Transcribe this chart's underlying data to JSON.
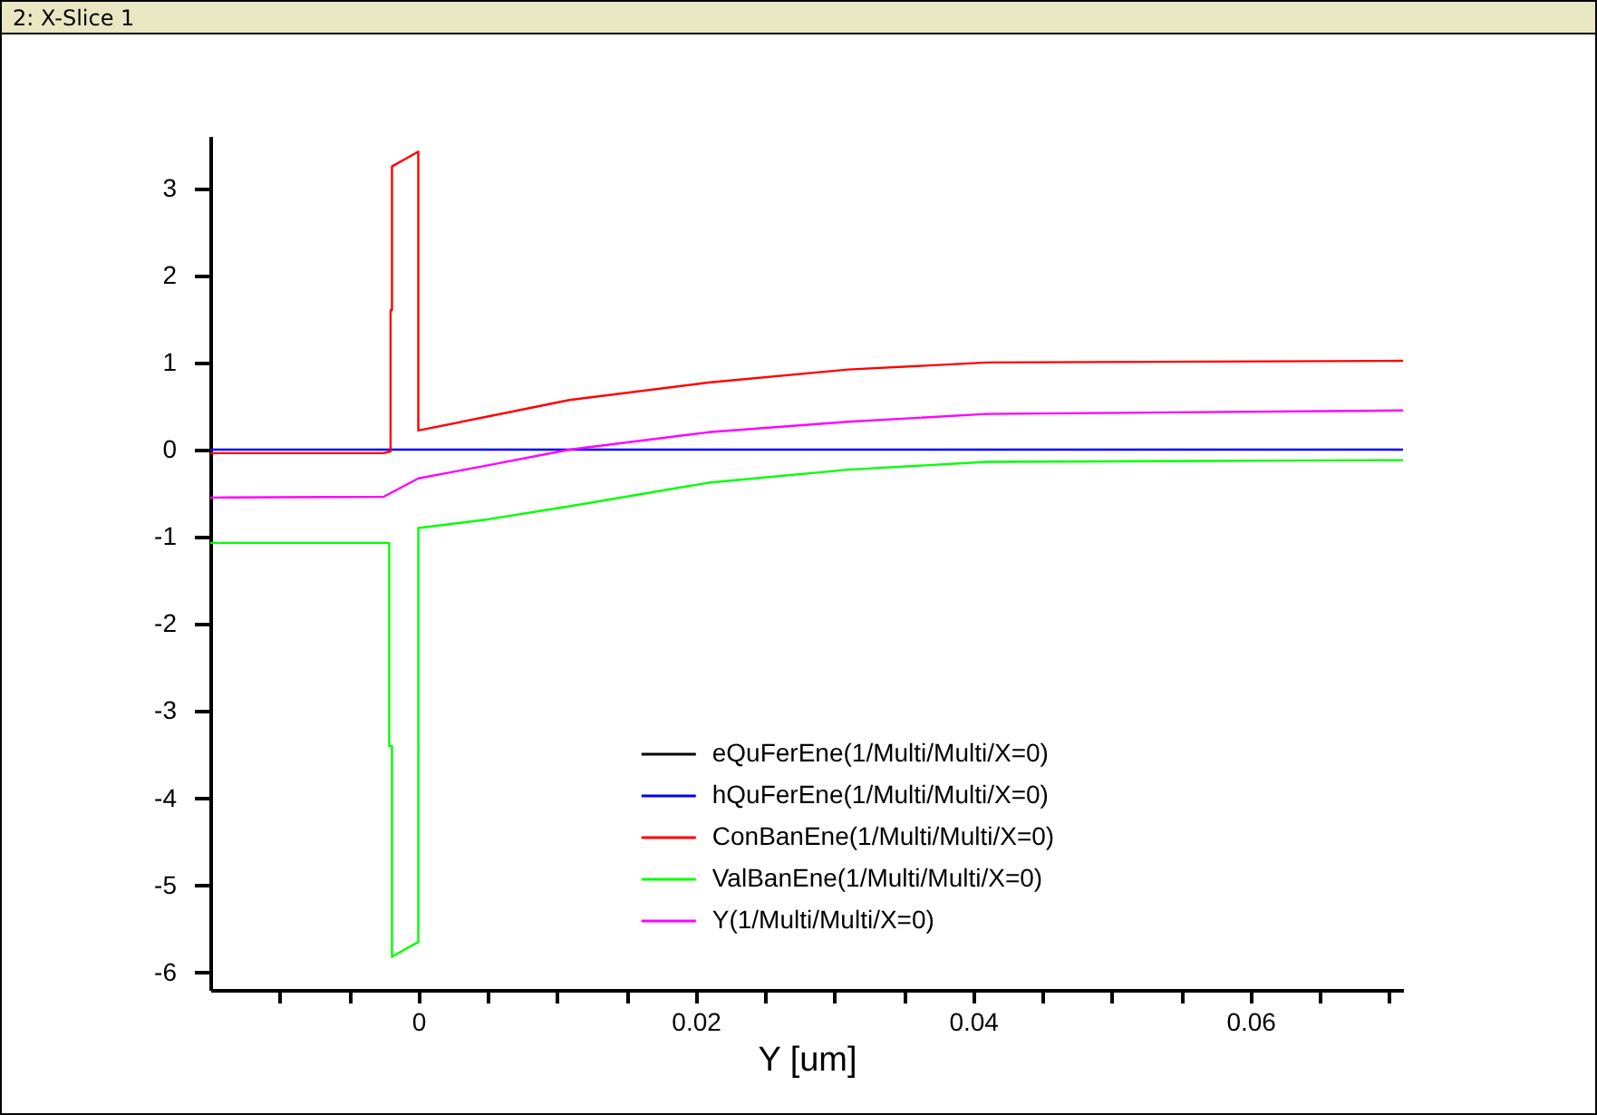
{
  "chart_data": {
    "type": "line",
    "title": "2: X-Slice 1",
    "xlabel": "Y [um]",
    "xlim": [
      -0.015,
      0.071
    ],
    "ylim": [
      -6.2,
      3.6
    ],
    "xticks": [
      {
        "value": -0.01,
        "label": null
      },
      {
        "value": -0.005,
        "label": null
      },
      {
        "value": 0,
        "label": "0"
      },
      {
        "value": 0.005,
        "label": null
      },
      {
        "value": 0.01,
        "label": null
      },
      {
        "value": 0.015,
        "label": null
      },
      {
        "value": 0.02,
        "label": "0.02"
      },
      {
        "value": 0.025,
        "label": null
      },
      {
        "value": 0.03,
        "label": null
      },
      {
        "value": 0.035,
        "label": null
      },
      {
        "value": 0.04,
        "label": "0.04"
      },
      {
        "value": 0.045,
        "label": null
      },
      {
        "value": 0.05,
        "label": null
      },
      {
        "value": 0.055,
        "label": null
      },
      {
        "value": 0.06,
        "label": "0.06"
      },
      {
        "value": 0.065,
        "label": null
      },
      {
        "value": 0.07,
        "label": null
      }
    ],
    "yticks": [
      -6,
      -5,
      -4,
      -3,
      -2,
      -1,
      0,
      1,
      2,
      3
    ],
    "grid": false,
    "legend": "bottom",
    "marker": "none",
    "line_style": "solid",
    "series": [
      {
        "name": "eQuFerEne(1/Multi/Multi/X=0)",
        "color": "#000000"
      },
      {
        "name": "hQuFerEne(1/Multi/Multi/X=0)",
        "color": "#0000ff",
        "x": [
          -0.015,
          0.071
        ],
        "values": [
          0,
          0
        ]
      },
      {
        "name": "ConBanEne(1/Multi/Multi/X=0)",
        "color": "#ff0000",
        "x": [
          -0.015,
          -0.0025,
          -0.002,
          -0.002,
          -0.0019,
          -0.0019,
          0,
          0,
          0.005,
          0.0109,
          0.0209,
          0.031,
          0.041,
          0.071
        ],
        "values": [
          -0.04,
          -0.04,
          -0.02,
          1.6,
          1.6,
          3.25,
          3.42,
          0.22,
          0.38,
          0.57,
          0.77,
          0.92,
          1.0,
          1.02
        ]
      },
      {
        "name": "ValBanEne(1/Multi/Multi/X=0)",
        "color": "#00ff00",
        "x": [
          -0.015,
          -0.0021,
          -0.0021,
          -0.0019,
          -0.0019,
          0,
          0,
          0.005,
          0.0109,
          0.0209,
          0.031,
          0.041,
          0.071
        ],
        "values": [
          -1.07,
          -1.07,
          -3.4,
          -3.4,
          -5.82,
          -5.65,
          -0.9,
          -0.8,
          -0.65,
          -0.38,
          -0.23,
          -0.14,
          -0.12
        ]
      },
      {
        "name": "Y(1/Multi/Multi/X=0)",
        "color": "#ff00ff",
        "x": [
          -0.015,
          -0.0025,
          0,
          0.005,
          0.0109,
          0.0209,
          0.031,
          0.041,
          0.071
        ],
        "values": [
          -0.55,
          -0.54,
          -0.33,
          -0.18,
          0.0,
          0.2,
          0.32,
          0.41,
          0.45
        ]
      }
    ]
  }
}
